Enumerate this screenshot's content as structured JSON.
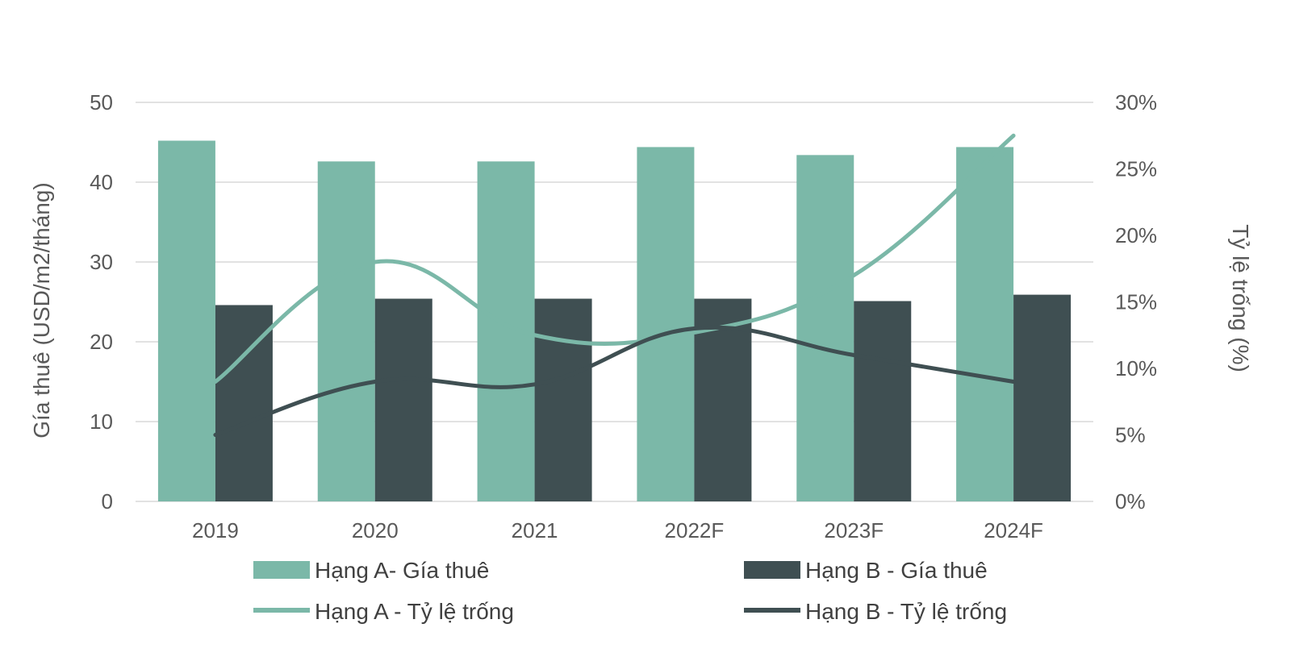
{
  "chart_data": {
    "type": "bar",
    "categories": [
      "2019",
      "2020",
      "2021",
      "2022F",
      "2023F",
      "2024F"
    ],
    "series": [
      {
        "name": "Hạng A- Gía thuê",
        "kind": "bar",
        "axis": "left",
        "color": "#7bb8a8",
        "values": [
          45.2,
          42.6,
          42.6,
          44.4,
          43.4,
          44.4
        ]
      },
      {
        "name": "Hạng B - Gía thuê",
        "kind": "bar",
        "axis": "left",
        "color": "#3f4f52",
        "values": [
          24.6,
          25.4,
          25.4,
          25.4,
          25.1,
          25.9
        ]
      },
      {
        "name": "Hạng A - Tỷ lệ trống",
        "kind": "line",
        "axis": "right",
        "color": "#7bb8a8",
        "values": [
          9.0,
          18.0,
          12.5,
          12.7,
          17.0,
          27.5
        ]
      },
      {
        "name": "Hạng B - Tỷ lệ trống",
        "kind": "line",
        "axis": "right",
        "color": "#3f4f52",
        "values": [
          5.0,
          9.0,
          8.8,
          13.0,
          11.0,
          9.0
        ]
      }
    ],
    "y_left": {
      "label": "Gía thuê (USD/m2/tháng)",
      "ylim": [
        0,
        50
      ],
      "ticks": [
        0,
        10,
        20,
        30,
        40,
        50
      ],
      "tick_labels": [
        "0",
        "10",
        "20",
        "30",
        "40",
        "50"
      ]
    },
    "y_right": {
      "label": "Tỷ lệ trống (%)",
      "ylim": [
        0,
        30
      ],
      "ticks": [
        0,
        5,
        10,
        15,
        20,
        25,
        30
      ],
      "tick_labels": [
        "0%",
        "5%",
        "10%",
        "15%",
        "20%",
        "25%",
        "30%"
      ]
    },
    "grid": true,
    "legend_position": "bottom"
  }
}
